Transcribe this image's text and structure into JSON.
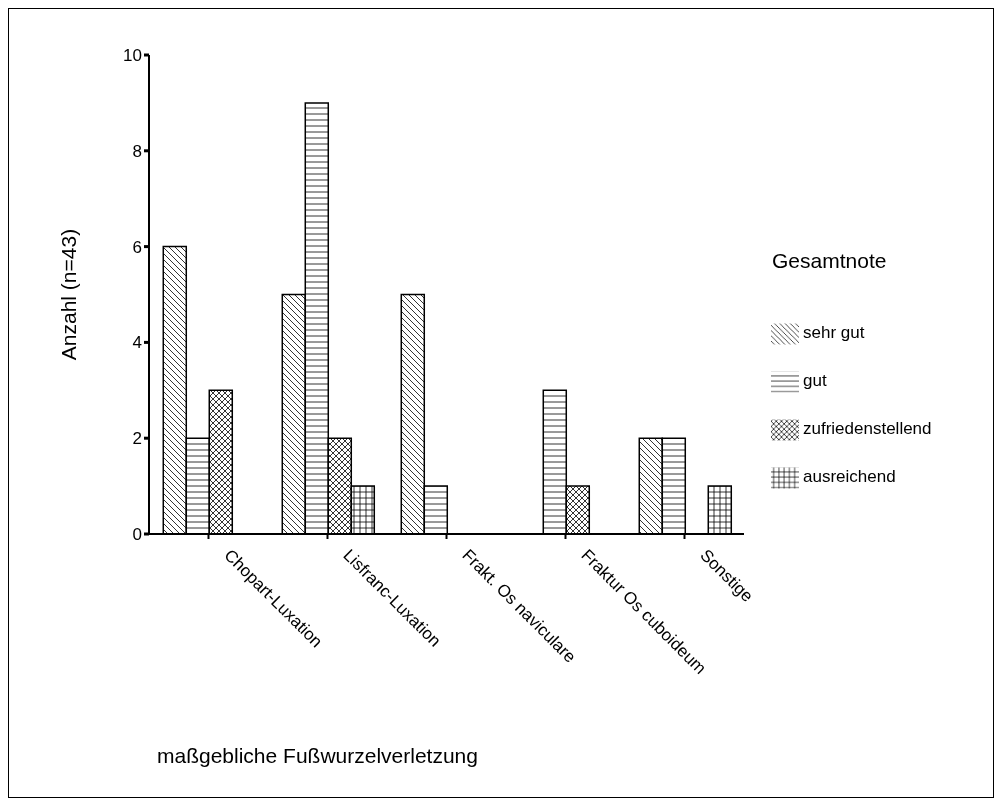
{
  "chart_data": {
    "type": "bar",
    "xlabel": "maßgebliche Fußwurzelverletzung",
    "ylabel": "Anzahl (n=43)",
    "legend_title": "Gesamtnote",
    "categories": [
      "Chopart-Luxation",
      "Lisfranc-Luxation",
      "Frakt. Os naviculare",
      "Fraktur Os cuboideum",
      "Sonstige"
    ],
    "series": [
      {
        "name": "sehr gut",
        "color": "#000000",
        "values": [
          6,
          5,
          5,
          0,
          2
        ]
      },
      {
        "name": "gut",
        "color": "#000000",
        "values": [
          2,
          9,
          1,
          3,
          2
        ]
      },
      {
        "name": "zufriedenstellend",
        "color": "#000000",
        "values": [
          3,
          2,
          0,
          1,
          0
        ]
      },
      {
        "name": "ausreichend",
        "color": "#000000",
        "values": [
          0,
          1,
          0,
          0,
          1
        ]
      }
    ],
    "ylim": [
      0,
      10
    ],
    "yticks": [
      0,
      2,
      4,
      6,
      8,
      10
    ],
    "grid": false,
    "legend": "right"
  }
}
